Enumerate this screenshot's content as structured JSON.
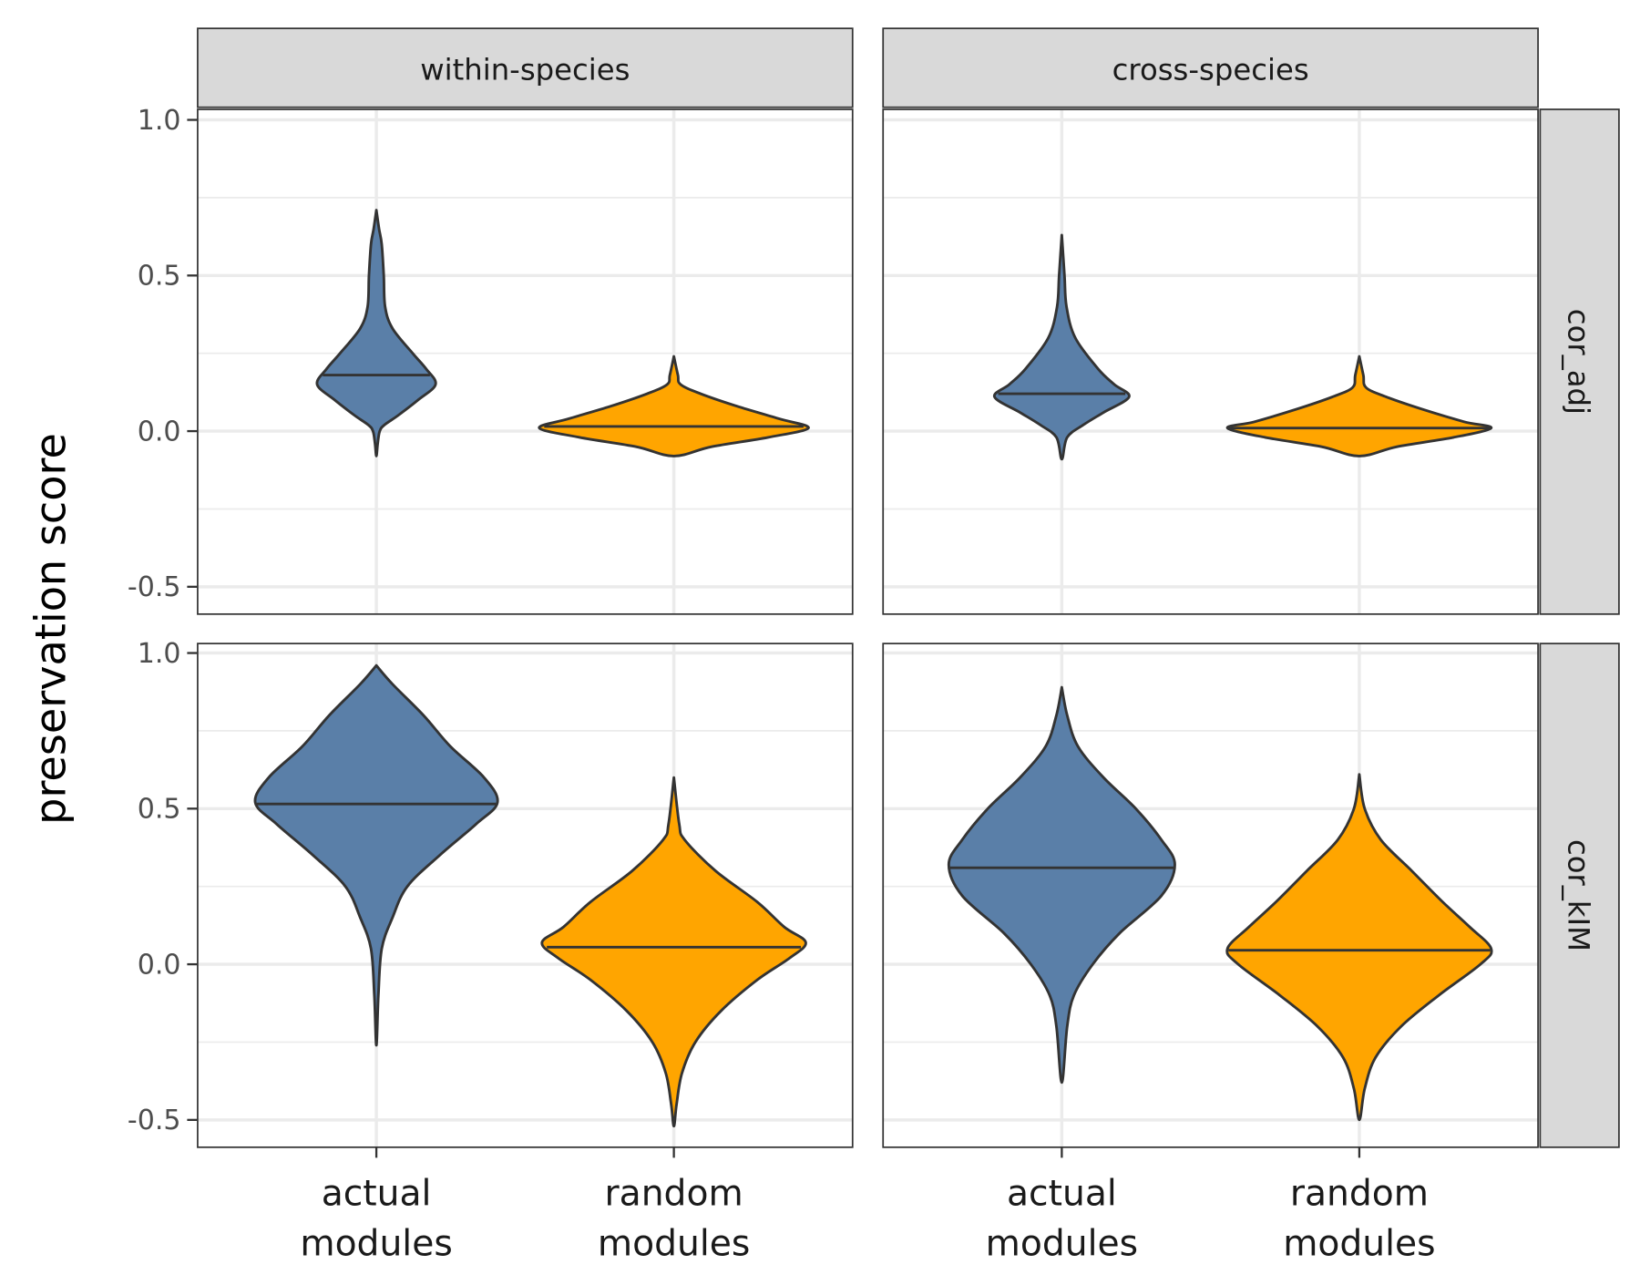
{
  "chart_data": {
    "type": "violin",
    "ylabel": "preservation score",
    "ylim": [
      -0.58,
      1.03
    ],
    "yticks": [
      "1.0",
      "0.5",
      "0.0",
      "-0.5"
    ],
    "ytick_values": [
      1.0,
      0.5,
      0.0,
      -0.5
    ],
    "grid": true,
    "categories": [
      "actual\nmodules",
      "random\nmodules"
    ],
    "category_lines": [
      [
        "actual",
        "modules"
      ],
      [
        "random",
        "modules"
      ]
    ],
    "columns": [
      "within-species",
      "cross-species"
    ],
    "rows": [
      "cor_adj",
      "cor_kIM"
    ],
    "colors": {
      "actual": "#5a7fa8",
      "random": "#ffa500",
      "outline": "#333333"
    },
    "panels": [
      {
        "column": "within-species",
        "row": "cor_adj",
        "violins": [
          {
            "category": "actual",
            "median": 0.18,
            "profile": [
              [
                0.71,
                0
              ],
              [
                0.65,
                0.02
              ],
              [
                0.6,
                0.04
              ],
              [
                0.5,
                0.055
              ],
              [
                0.4,
                0.065
              ],
              [
                0.33,
                0.12
              ],
              [
                0.25,
                0.27
              ],
              [
                0.2,
                0.37
              ],
              [
                0.15,
                0.44
              ],
              [
                0.1,
                0.31
              ],
              [
                0.05,
                0.16
              ],
              [
                0.02,
                0.06
              ],
              [
                0,
                0.025
              ],
              [
                -0.04,
                0.01
              ],
              [
                -0.08,
                0
              ]
            ]
          },
          {
            "category": "random",
            "median": 0.015,
            "profile": [
              [
                0.24,
                0
              ],
              [
                0.18,
                0.03
              ],
              [
                0.15,
                0.05
              ],
              [
                0.12,
                0.2
              ],
              [
                0.08,
                0.47
              ],
              [
                0.04,
                0.78
              ],
              [
                0.01,
                1.0
              ],
              [
                -0.02,
                0.7
              ],
              [
                -0.05,
                0.28
              ],
              [
                -0.08,
                0
              ]
            ]
          }
        ]
      },
      {
        "column": "cross-species",
        "row": "cor_adj",
        "violins": [
          {
            "category": "actual",
            "median": 0.12,
            "profile": [
              [
                0.63,
                0
              ],
              [
                0.5,
                0.02
              ],
              [
                0.4,
                0.035
              ],
              [
                0.3,
                0.1
              ],
              [
                0.2,
                0.27
              ],
              [
                0.15,
                0.39
              ],
              [
                0.11,
                0.5
              ],
              [
                0.06,
                0.31
              ],
              [
                0.02,
                0.16
              ],
              [
                -0.02,
                0.04
              ],
              [
                -0.09,
                0
              ]
            ]
          },
          {
            "category": "random",
            "median": 0.01,
            "profile": [
              [
                0.24,
                0
              ],
              [
                0.18,
                0.03
              ],
              [
                0.14,
                0.05
              ],
              [
                0.11,
                0.2
              ],
              [
                0.07,
                0.47
              ],
              [
                0.03,
                0.78
              ],
              [
                0.01,
                0.98
              ],
              [
                -0.02,
                0.7
              ],
              [
                -0.05,
                0.28
              ],
              [
                -0.08,
                0
              ]
            ]
          }
        ]
      },
      {
        "column": "within-species",
        "row": "cor_kIM",
        "violins": [
          {
            "category": "actual",
            "median": 0.515,
            "profile": [
              [
                0.96,
                0
              ],
              [
                0.9,
                0.12
              ],
              [
                0.8,
                0.35
              ],
              [
                0.7,
                0.55
              ],
              [
                0.6,
                0.8
              ],
              [
                0.52,
                0.9
              ],
              [
                0.45,
                0.74
              ],
              [
                0.35,
                0.47
              ],
              [
                0.25,
                0.23
              ],
              [
                0.15,
                0.12
              ],
              [
                0.05,
                0.04
              ],
              [
                -0.1,
                0.015
              ],
              [
                -0.26,
                0
              ]
            ]
          },
          {
            "category": "random",
            "median": 0.055,
            "profile": [
              [
                0.6,
                0
              ],
              [
                0.45,
                0.04
              ],
              [
                0.4,
                0.08
              ],
              [
                0.3,
                0.31
              ],
              [
                0.2,
                0.62
              ],
              [
                0.12,
                0.82
              ],
              [
                0.07,
                0.98
              ],
              [
                0.02,
                0.86
              ],
              [
                -0.05,
                0.62
              ],
              [
                -0.15,
                0.35
              ],
              [
                -0.25,
                0.16
              ],
              [
                -0.35,
                0.06
              ],
              [
                -0.45,
                0.02
              ],
              [
                -0.52,
                0
              ]
            ]
          }
        ]
      },
      {
        "column": "cross-species",
        "row": "cor_kIM",
        "violins": [
          {
            "category": "actual",
            "median": 0.31,
            "profile": [
              [
                0.89,
                0
              ],
              [
                0.8,
                0.04
              ],
              [
                0.7,
                0.12
              ],
              [
                0.6,
                0.31
              ],
              [
                0.5,
                0.55
              ],
              [
                0.4,
                0.74
              ],
              [
                0.32,
                0.84
              ],
              [
                0.22,
                0.74
              ],
              [
                0.1,
                0.43
              ],
              [
                0,
                0.23
              ],
              [
                -0.1,
                0.09
              ],
              [
                -0.2,
                0.04
              ],
              [
                -0.38,
                0
              ]
            ]
          },
          {
            "category": "random",
            "median": 0.045,
            "profile": [
              [
                0.61,
                0
              ],
              [
                0.5,
                0.04
              ],
              [
                0.4,
                0.16
              ],
              [
                0.3,
                0.39
              ],
              [
                0.2,
                0.62
              ],
              [
                0.12,
                0.82
              ],
              [
                0.05,
                0.98
              ],
              [
                0,
                0.9
              ],
              [
                -0.1,
                0.59
              ],
              [
                -0.2,
                0.31
              ],
              [
                -0.3,
                0.12
              ],
              [
                -0.4,
                0.04
              ],
              [
                -0.5,
                0
              ]
            ]
          }
        ]
      }
    ]
  }
}
